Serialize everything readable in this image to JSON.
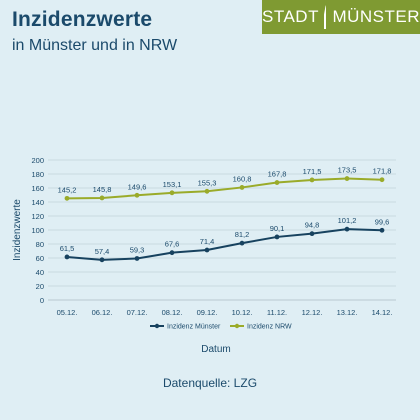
{
  "header": {
    "title": "Inzidenzwerte",
    "subtitle": "in Münster und in NRW"
  },
  "logo": {
    "text_left": "STADT",
    "text_right": "MÜNSTER",
    "color": "#7f9a32"
  },
  "chart_data": {
    "type": "line",
    "categories": [
      "05.12.",
      "06.12.",
      "07.12.",
      "08.12.",
      "09.12.",
      "10.12.",
      "11.12.",
      "12.12.",
      "13.12.",
      "14.12."
    ],
    "series": [
      {
        "name": "Inzidenz Münster",
        "color": "#17425f",
        "values": [
          61.5,
          57.4,
          59.3,
          67.6,
          71.4,
          81.2,
          90.1,
          94.8,
          101.2,
          99.6
        ],
        "labels": [
          "61,5",
          "57,4",
          "59,3",
          "67,6",
          "71,4",
          "81,2",
          "90,1",
          "94,8",
          "101,2",
          "99,6"
        ]
      },
      {
        "name": "Inzidenz NRW",
        "color": "#9aab2a",
        "values": [
          145.2,
          145.8,
          149.6,
          153.1,
          155.3,
          160.8,
          167.8,
          171.5,
          173.5,
          171.8
        ],
        "labels": [
          "145,2",
          "145,8",
          "149,6",
          "153,1",
          "155,3",
          "160,8",
          "167,8",
          "171,5",
          "173,5",
          "171,8"
        ]
      }
    ],
    "xlabel": "Datum",
    "ylabel": "Inzidenzwerte",
    "ylim": [
      0,
      200
    ],
    "yticks": [
      0,
      20,
      40,
      60,
      80,
      100,
      120,
      140,
      160,
      180,
      200
    ],
    "grid": true,
    "legend": "bottom"
  },
  "footer": {
    "source": "Datenquelle: LZG"
  }
}
